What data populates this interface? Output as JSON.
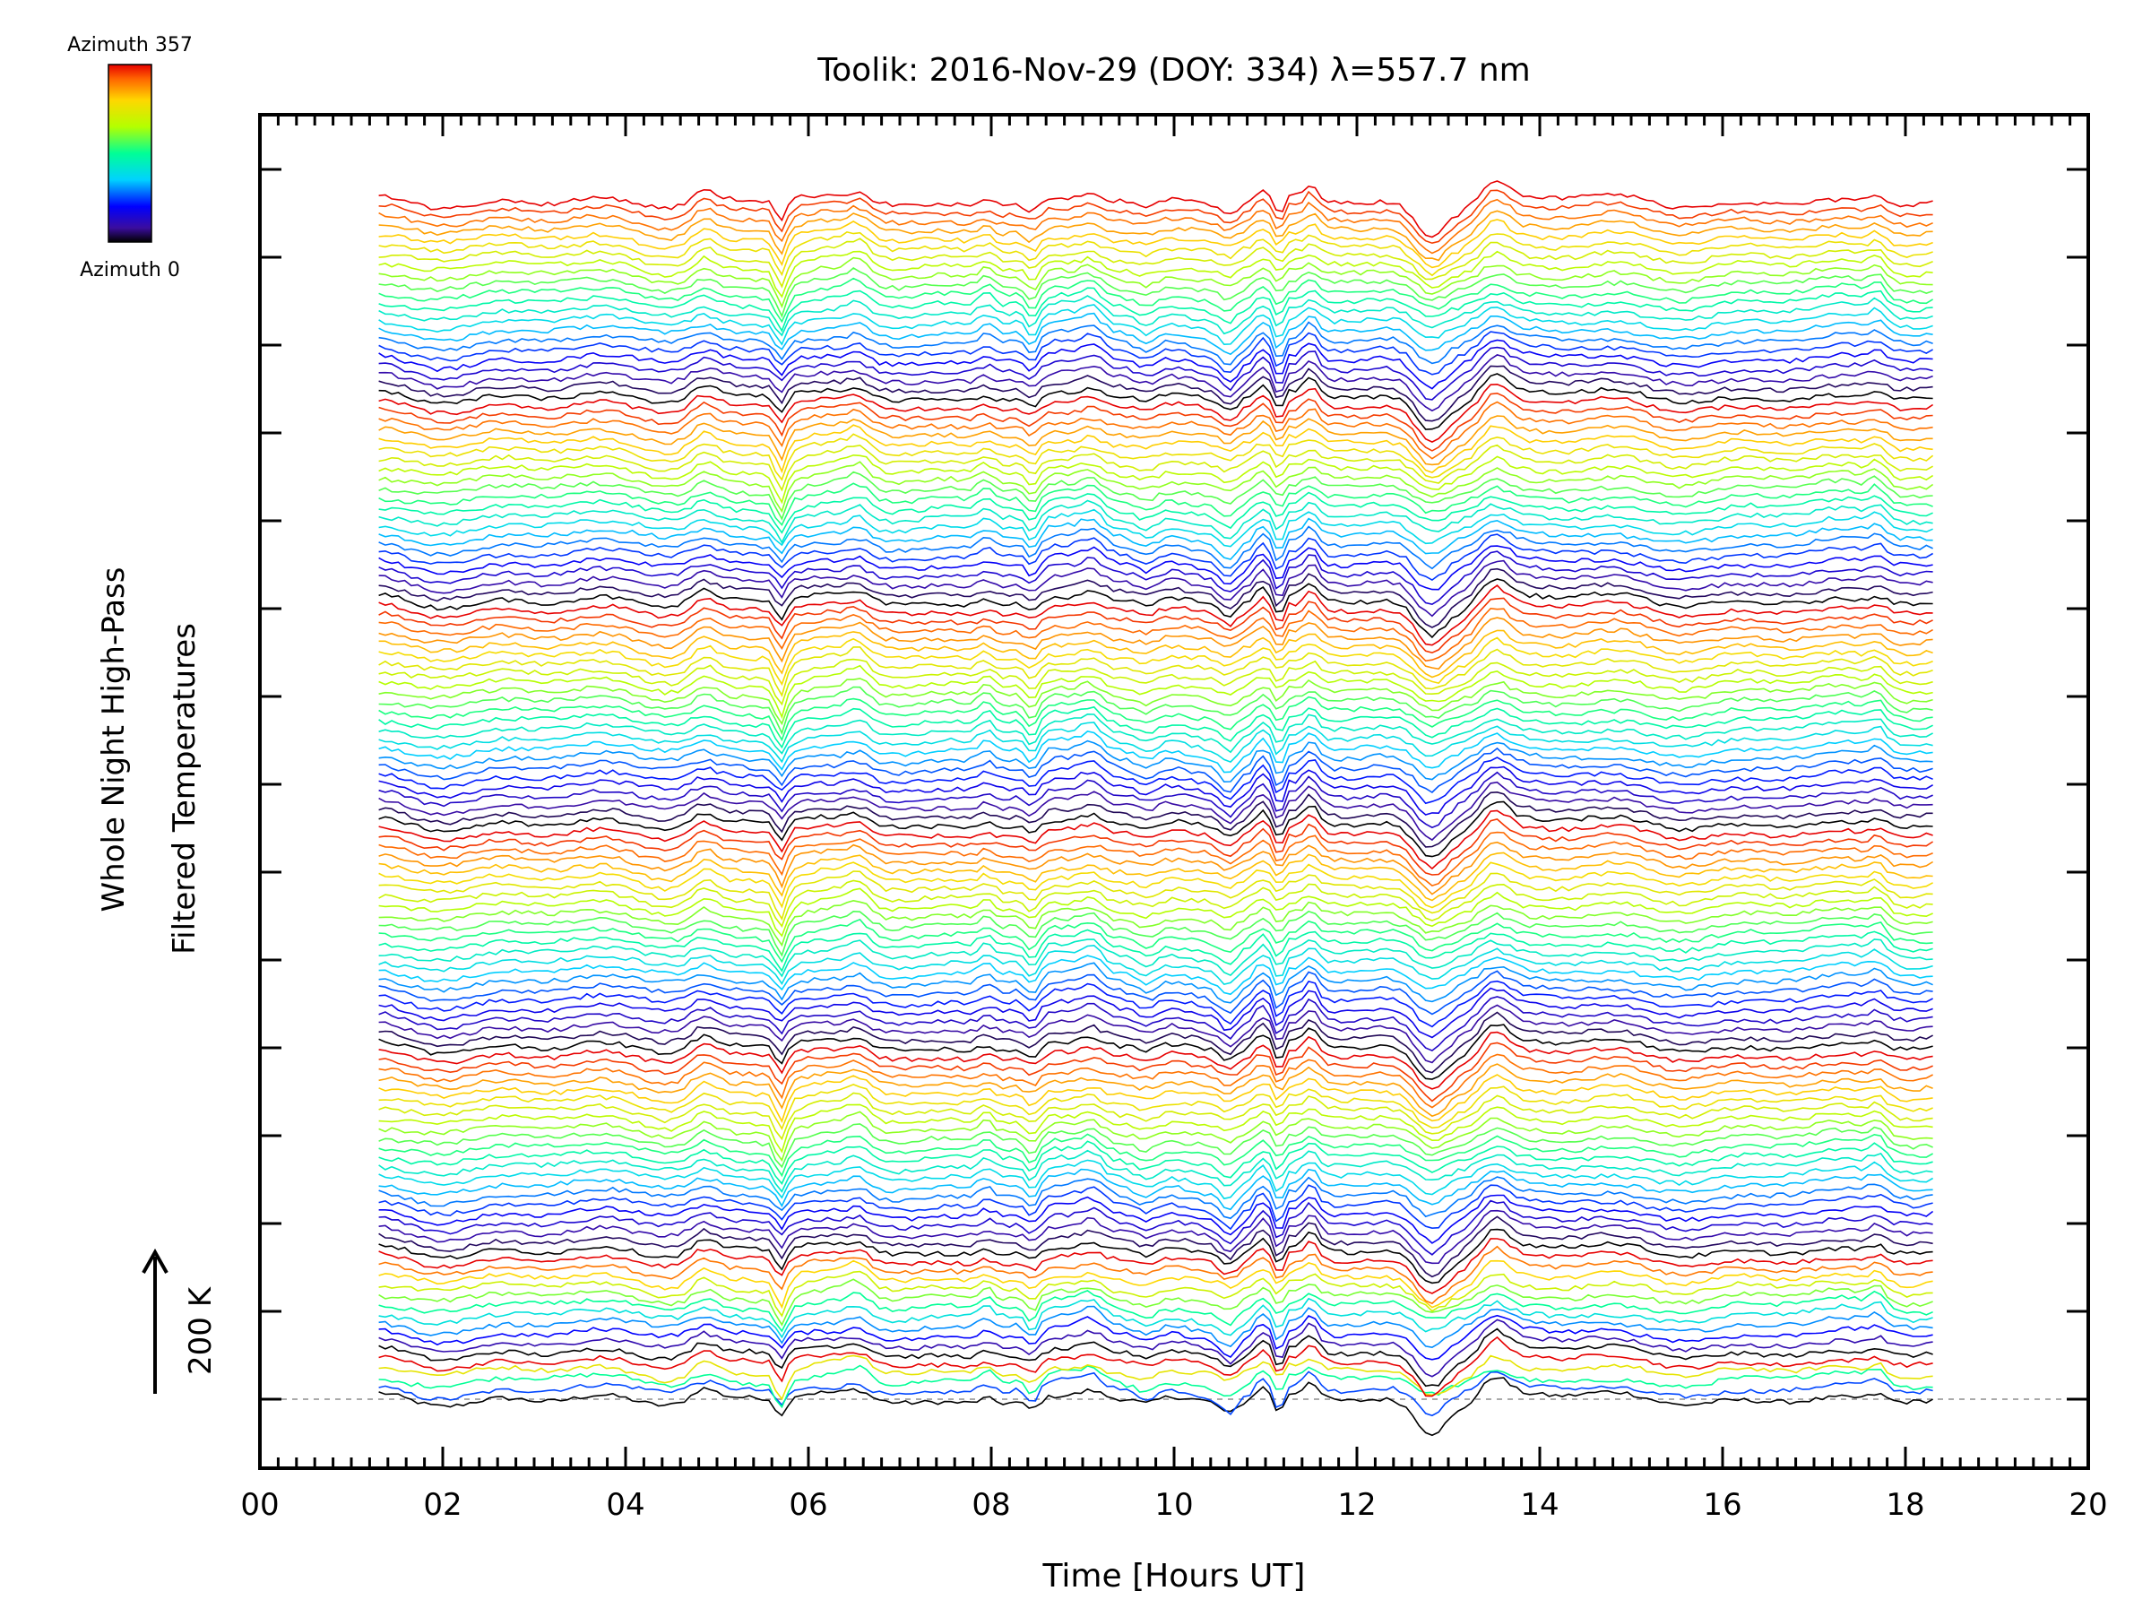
{
  "chart_data": {
    "type": "line",
    "title": "Toolik: 2016-Nov-29 (DOY: 334) λ=557.7 nm",
    "xlabel": "Time [Hours UT]",
    "ylabel_line1": "Whole Night High-Pass",
    "ylabel_line2": "Filtered Temperatures",
    "xlim": [
      0,
      20
    ],
    "x_ticks": [
      "00",
      "02",
      "04",
      "06",
      "08",
      "10",
      "12",
      "14",
      "16",
      "18",
      "20"
    ],
    "x_tick_values": [
      0,
      2,
      4,
      6,
      8,
      10,
      12,
      14,
      16,
      18,
      20
    ],
    "data_range_hours": [
      1.3,
      18.3
    ],
    "scale_bar_label": "200 K",
    "colorbar": {
      "top_label": "Azimuth 357",
      "bottom_label": "Azimuth 0",
      "colormap": "rainbow",
      "range": [
        0,
        357
      ]
    },
    "series_count": 130,
    "group_sizes": [
      5,
      11,
      22,
      24,
      24,
      22,
      22
    ],
    "events_hours": [
      4.85,
      5.7,
      6.55,
      7.95,
      8.45,
      9.1,
      9.7,
      10.6,
      10.95,
      11.15,
      11.5,
      12.8,
      13.5,
      17.7
    ],
    "colors": {
      "background": "#ffffff",
      "axis": "#000000",
      "baseline": "#aaaaaa"
    }
  }
}
